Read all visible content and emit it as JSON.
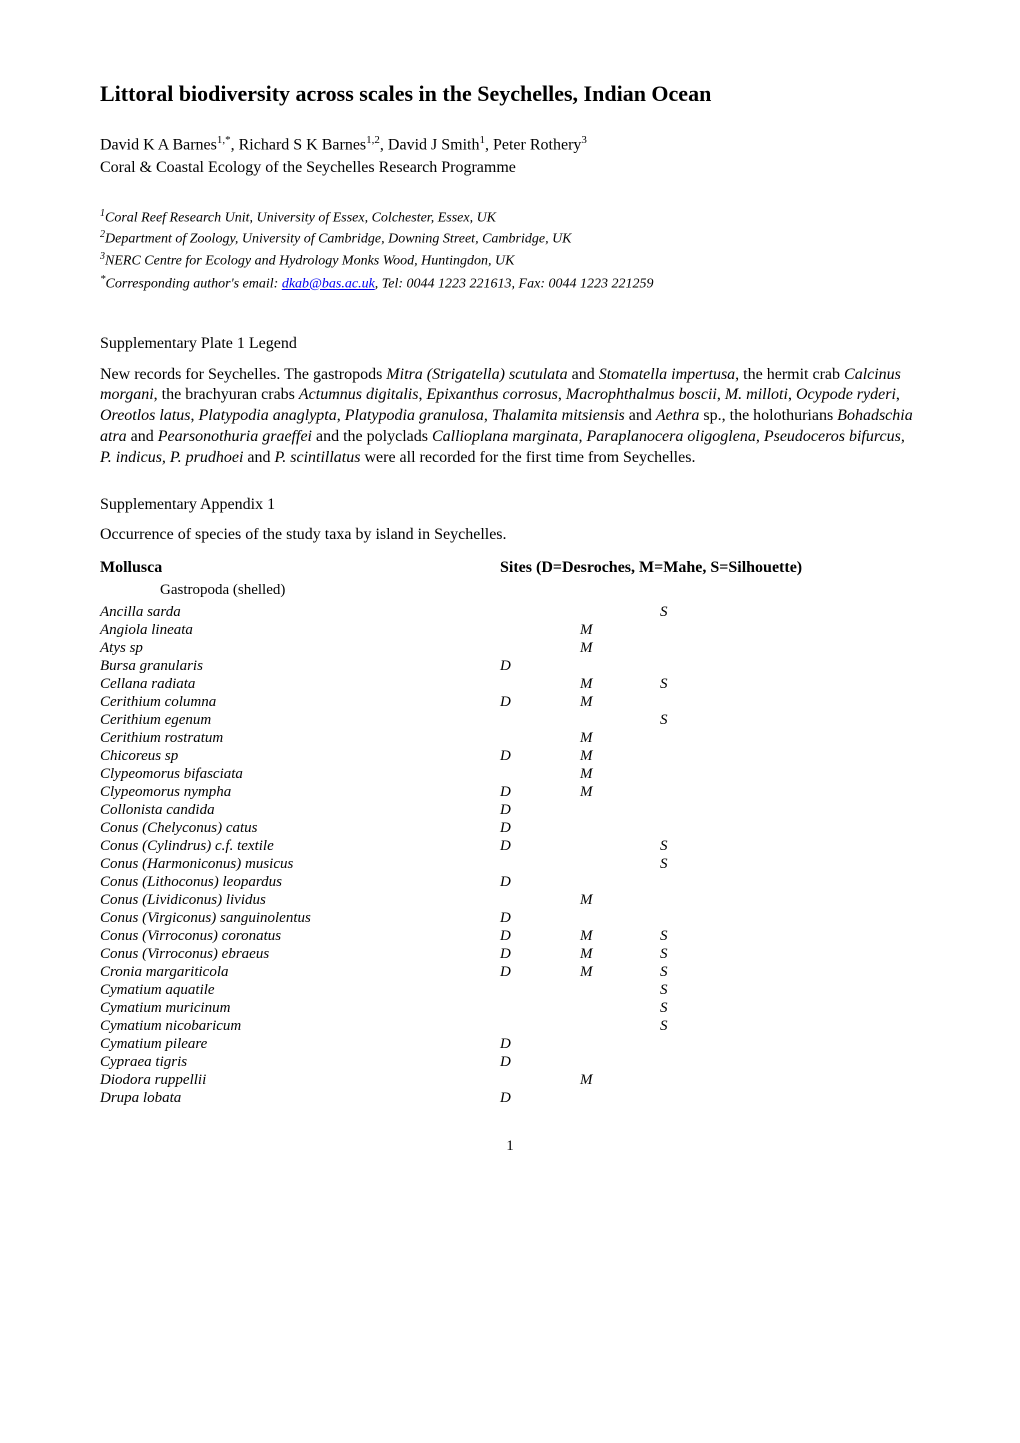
{
  "title": "Littoral biodiversity across scales in the Seychelles, Indian Ocean",
  "authors_line": "David K A Barnes",
  "author_sup_1": "1,*",
  "author_2": ", Richard S K Barnes",
  "author_sup_2": "1,2",
  "author_3": ", David J Smith",
  "author_sup_3": "1",
  "author_4": ", Peter Rothery",
  "author_sup_4": "3",
  "programme": "Coral & Coastal Ecology of the Seychelles Research Programme",
  "affiliations": {
    "a1_sup": "1",
    "a1": "Coral Reef Research Unit, University of Essex, Colchester, Essex, UK",
    "a2_sup": "2",
    "a2": "Department of Zoology, University of Cambridge, Downing Street, Cambridge, UK",
    "a3_sup": "3",
    "a3": "NERC Centre for Ecology and Hydrology Monks Wood, Huntingdon, UK",
    "corr_sup": "*",
    "corr_prefix": "Corresponding author's email: ",
    "corr_email": "dkab@bas.ac.uk",
    "corr_suffix": ", Tel: 0044 1223 221613, Fax: 0044 1223 221259"
  },
  "plate_heading": "Supplementary Plate 1 Legend",
  "plate_para_1": "New records for Seychelles.  The gastropods ",
  "plate_ital_1": "Mitra (Strigatella) scutulata",
  "plate_txt_2": " and ",
  "plate_ital_2": "Stomatella impertusa",
  "plate_txt_3": ", the hermit crab ",
  "plate_ital_3": "Calcinus morgani",
  "plate_txt_4": ", the brachyuran crabs ",
  "plate_ital_4": "Actumnus digitalis",
  "plate_txt_5": ", ",
  "plate_ital_5": "Epixanthus corrosus",
  "plate_txt_6": ", ",
  "plate_ital_6": "Macrophthalmus boscii",
  "plate_txt_7": ", ",
  "plate_ital_7": "M. milloti",
  "plate_txt_8": ", ",
  "plate_ital_8": "Ocypode ryderi",
  "plate_txt_9": ", ",
  "plate_ital_9": "Oreotlos latus",
  "plate_txt_10": ", ",
  "plate_ital_10": "Platypodia anaglypta",
  "plate_txt_11": ", ",
  "plate_ital_11": "Platypodia granulosa",
  "plate_txt_12": ", ",
  "plate_ital_12": "Thalamita mitsiensis",
  "plate_txt_13": " and ",
  "plate_ital_13": "Aethra",
  "plate_txt_14": " sp., the holothurians ",
  "plate_ital_14": "Bohadschia atra",
  "plate_txt_15": " and ",
  "plate_ital_15": "Pearsonothuria graeffei",
  "plate_txt_16": " and the polyclads ",
  "plate_ital_16": "Callioplana marginata, Paraplanocera oligoglena, Pseudoceros bifurcus, P. indicus, P. prudhoei",
  "plate_txt_17": " and ",
  "plate_ital_17": "P. scintillatus",
  "plate_txt_18": " were all recorded for the first time from Seychelles.",
  "appendix_heading": "Supplementary Appendix 1",
  "appendix_intro": "Occurrence of species of the study taxa by island in Seychelles.",
  "table": {
    "mollusca_label": "Mollusca",
    "sites_label": "Sites (D=Desroches, M=Mahe, S=Silhouette)",
    "subheading": "Gastropoda (shelled)",
    "rows": [
      {
        "name": "Ancilla sarda",
        "d": "",
        "m": "",
        "s": "S"
      },
      {
        "name": "Angiola lineata",
        "d": "",
        "m": "M",
        "s": ""
      },
      {
        "name": "Atys sp",
        "d": "",
        "m": "M",
        "s": ""
      },
      {
        "name": "Bursa granularis",
        "d": "D",
        "m": "",
        "s": ""
      },
      {
        "name": "Cellana radiata",
        "d": "",
        "m": "M",
        "s": "S"
      },
      {
        "name": "Cerithium columna",
        "d": "D",
        "m": "M",
        "s": ""
      },
      {
        "name": "Cerithium egenum",
        "d": "",
        "m": "",
        "s": "S"
      },
      {
        "name": "Cerithium rostratum",
        "d": "",
        "m": "M",
        "s": ""
      },
      {
        "name": "Chicoreus sp",
        "d": "D",
        "m": "M",
        "s": ""
      },
      {
        "name": "Clypeomorus bifasciata",
        "d": "",
        "m": "M",
        "s": ""
      },
      {
        "name": "Clypeomorus nympha",
        "d": "D",
        "m": "M",
        "s": ""
      },
      {
        "name": "Collonista candida",
        "d": "D",
        "m": "",
        "s": ""
      },
      {
        "name": "Conus (Chelyconus) catus",
        "d": "D",
        "m": "",
        "s": ""
      },
      {
        "name": "Conus (Cylindrus) c.f. textile",
        "d": "D",
        "m": "",
        "s": "S"
      },
      {
        "name": "Conus (Harmoniconus) musicus",
        "d": "",
        "m": "",
        "s": "S"
      },
      {
        "name": "Conus (Lithoconus) leopardus",
        "d": "D",
        "m": "",
        "s": ""
      },
      {
        "name": "Conus (Lividiconus) lividus",
        "d": "",
        "m": "M",
        "s": ""
      },
      {
        "name": "Conus (Virgiconus) sanguinolentus",
        "d": "D",
        "m": "",
        "s": ""
      },
      {
        "name": "Conus (Virroconus) coronatus",
        "d": "D",
        "m": "M",
        "s": "S"
      },
      {
        "name": "Conus (Virroconus) ebraeus",
        "d": "D",
        "m": "M",
        "s": "S"
      },
      {
        "name": "Cronia margariticola",
        "d": "D",
        "m": "M",
        "s": "S"
      },
      {
        "name": "Cymatium aquatile",
        "d": "",
        "m": "",
        "s": "S"
      },
      {
        "name": "Cymatium muricinum",
        "d": "",
        "m": "",
        "s": "S"
      },
      {
        "name": "Cymatium nicobaricum",
        "d": "",
        "m": "",
        "s": "S"
      },
      {
        "name": "Cymatium pileare",
        "d": "D",
        "m": "",
        "s": ""
      },
      {
        "name": "Cypraea tigris",
        "d": "D",
        "m": "",
        "s": ""
      },
      {
        "name": "Diodora ruppellii",
        "d": "",
        "m": "M",
        "s": ""
      },
      {
        "name": "Drupa lobata",
        "d": "D",
        "m": "",
        "s": ""
      }
    ]
  },
  "page_number": "1"
}
